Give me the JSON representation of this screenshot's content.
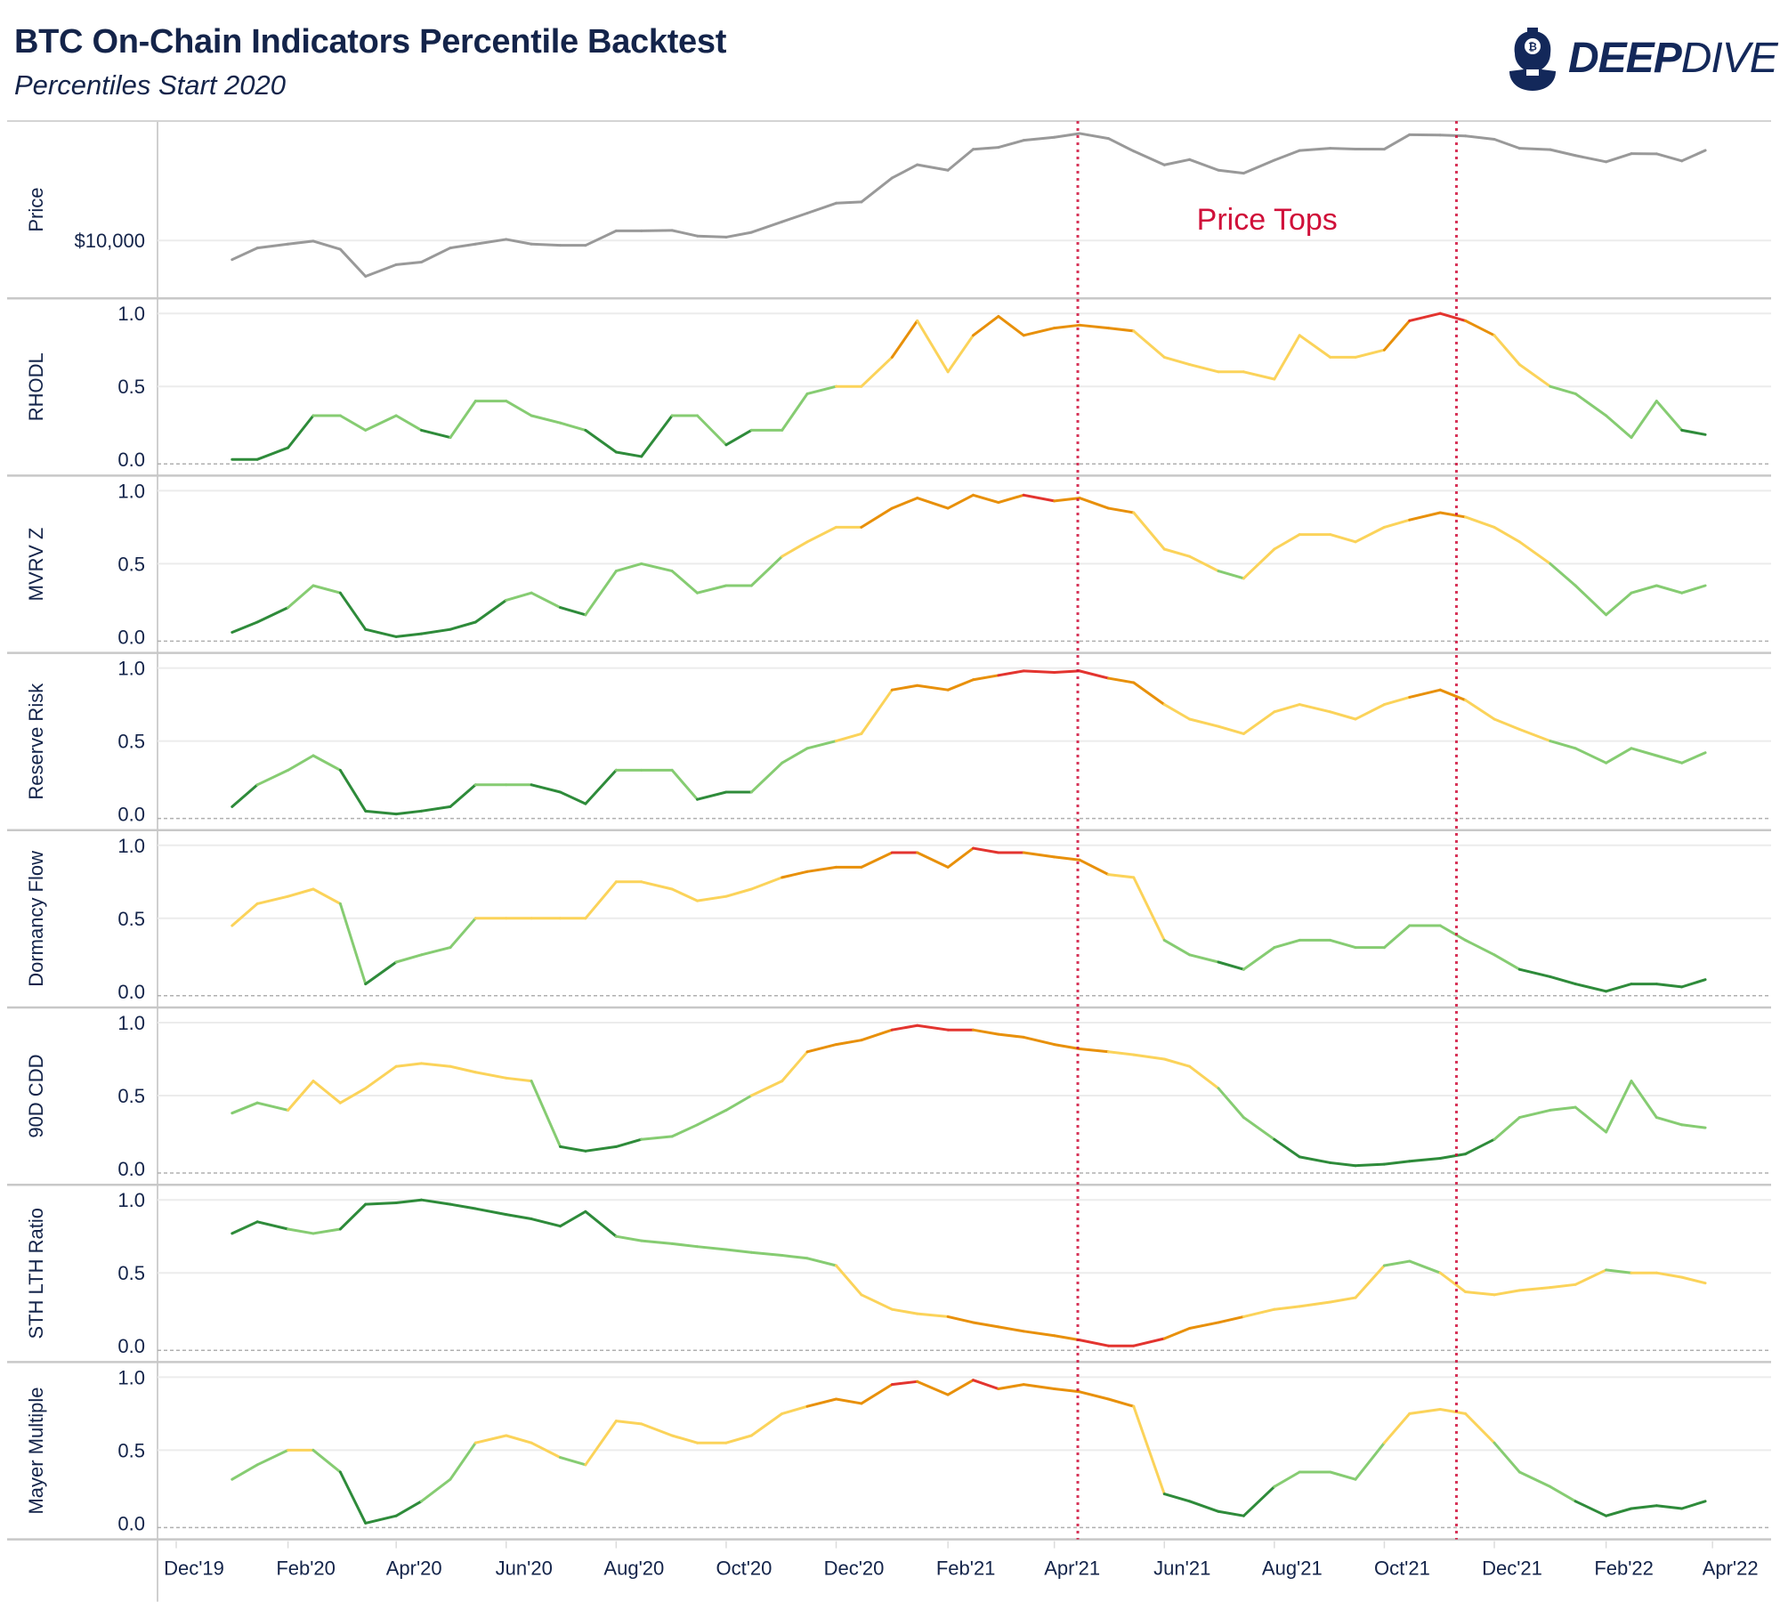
{
  "header": {
    "title": "BTC On-Chain Indicators Percentile Backtest",
    "subtitle": "Percentiles Start 2020"
  },
  "logo": {
    "text_bold": "DEEP",
    "text_light": "DIVE",
    "color": "#13285a"
  },
  "chart_data": {
    "type": "line",
    "title": "BTC On-Chain Indicators Percentile Backtest",
    "subtitle": "Percentiles Start 2020",
    "x_tick_labels": [
      "Dec'19",
      "Feb'20",
      "Apr'20",
      "Jun'20",
      "Aug'20",
      "Oct'20",
      "Dec'20",
      "Feb'21",
      "Apr'21",
      "Jun'21",
      "Aug'21",
      "Oct'21",
      "Dec'21",
      "Feb'22",
      "Apr'22"
    ],
    "x_tick_dates": [
      "2019-12-01",
      "2020-02-01",
      "2020-04-01",
      "2020-06-01",
      "2020-08-01",
      "2020-10-01",
      "2020-12-01",
      "2021-02-01",
      "2021-04-01",
      "2021-06-01",
      "2021-08-01",
      "2021-10-01",
      "2021-12-01",
      "2022-02-01",
      "2022-04-01"
    ],
    "xlim": [
      "2019-11-20",
      "2022-04-30"
    ],
    "grid": true,
    "annotations": [
      {
        "text": "Price Tops",
        "color": "#d0103a",
        "lines": [
          "2021-04-14",
          "2021-11-10"
        ]
      }
    ],
    "color_scale": [
      {
        "min": 0.95,
        "color": "#e3342f"
      },
      {
        "min": 0.8,
        "color": "#e8900a"
      },
      {
        "min": 0.5,
        "color": "#fbd35a"
      },
      {
        "min": 0.2,
        "color": "#86cc72"
      },
      {
        "min": -1,
        "color": "#2e8b3a"
      }
    ],
    "dates": [
      "2020-01-01",
      "2020-01-15",
      "2020-02-01",
      "2020-02-15",
      "2020-03-01",
      "2020-03-15",
      "2020-04-01",
      "2020-04-15",
      "2020-05-01",
      "2020-05-15",
      "2020-06-01",
      "2020-06-15",
      "2020-07-01",
      "2020-07-15",
      "2020-08-01",
      "2020-08-15",
      "2020-09-01",
      "2020-09-15",
      "2020-10-01",
      "2020-10-15",
      "2020-11-01",
      "2020-11-15",
      "2020-12-01",
      "2020-12-15",
      "2021-01-01",
      "2021-01-15",
      "2021-02-01",
      "2021-02-15",
      "2021-03-01",
      "2021-03-15",
      "2021-04-01",
      "2021-04-15",
      "2021-05-01",
      "2021-05-15",
      "2021-06-01",
      "2021-06-15",
      "2021-07-01",
      "2021-07-15",
      "2021-08-01",
      "2021-08-15",
      "2021-09-01",
      "2021-09-15",
      "2021-10-01",
      "2021-10-15",
      "2021-11-01",
      "2021-11-15",
      "2021-12-01",
      "2021-12-15",
      "2022-01-01",
      "2022-01-15",
      "2022-02-01",
      "2022-02-15",
      "2022-03-01",
      "2022-03-15",
      "2022-03-28"
    ],
    "panels": [
      {
        "name": "Price",
        "scale": "log",
        "ylim": [
          3700,
          78000
        ],
        "ticks": [
          10000
        ],
        "tick_labels": [
          "$10,000"
        ],
        "line_color": "#999999",
        "values": [
          7200,
          8800,
          9400,
          9900,
          8600,
          5400,
          6600,
          6900,
          8800,
          9400,
          10200,
          9400,
          9200,
          9200,
          11800,
          11800,
          11900,
          10800,
          10600,
          11500,
          13800,
          16000,
          19000,
          19400,
          29300,
          36800,
          33500,
          48000,
          49600,
          56000,
          59000,
          63000,
          57800,
          46500,
          36700,
          40200,
          33500,
          31800,
          39800,
          47000,
          48800,
          48200,
          48100,
          61700,
          61300,
          60400,
          57000,
          48800,
          47700,
          43100,
          38700,
          44500,
          44400,
          39300,
          47100
        ]
      },
      {
        "name": "RHODL",
        "scale": "linear",
        "ylim": [
          0,
          1
        ],
        "ticks": [
          0,
          0.5,
          1
        ],
        "tick_labels": [
          "0.0",
          "0.5",
          "1.0"
        ],
        "values": [
          0,
          0,
          0.08,
          0.3,
          0.3,
          0.2,
          0.3,
          0.2,
          0.15,
          0.4,
          0.4,
          0.3,
          0.25,
          0.2,
          0.05,
          0.02,
          0.3,
          0.3,
          0.1,
          0.2,
          0.2,
          0.45,
          0.5,
          0.5,
          0.7,
          0.95,
          0.6,
          0.85,
          0.98,
          0.85,
          0.9,
          0.92,
          0.9,
          0.88,
          0.7,
          0.65,
          0.6,
          0.6,
          0.55,
          0.85,
          0.7,
          0.7,
          0.75,
          0.95,
          1.0,
          0.95,
          0.85,
          0.65,
          0.5,
          0.45,
          0.3,
          0.15,
          0.4,
          0.2,
          0.17
        ]
      },
      {
        "name": "MVRV Z",
        "scale": "linear",
        "ylim": [
          0,
          1
        ],
        "ticks": [
          0,
          0.5,
          1
        ],
        "tick_labels": [
          "0.0",
          "0.5",
          "1.0"
        ],
        "values": [
          0.03,
          0.1,
          0.2,
          0.35,
          0.3,
          0.05,
          0,
          0.02,
          0.05,
          0.1,
          0.25,
          0.3,
          0.2,
          0.15,
          0.45,
          0.5,
          0.45,
          0.3,
          0.35,
          0.35,
          0.55,
          0.65,
          0.75,
          0.75,
          0.88,
          0.95,
          0.88,
          0.97,
          0.92,
          0.97,
          0.93,
          0.95,
          0.88,
          0.85,
          0.6,
          0.55,
          0.45,
          0.4,
          0.6,
          0.7,
          0.7,
          0.65,
          0.75,
          0.8,
          0.85,
          0.82,
          0.75,
          0.65,
          0.5,
          0.35,
          0.15,
          0.3,
          0.35,
          0.3,
          0.35
        ]
      },
      {
        "name": "Reserve Risk",
        "scale": "linear",
        "ylim": [
          0,
          1
        ],
        "ticks": [
          0,
          0.5,
          1
        ],
        "tick_labels": [
          "0.0",
          "0.5",
          "1.0"
        ],
        "values": [
          0.05,
          0.2,
          0.3,
          0.4,
          0.3,
          0.02,
          0,
          0.02,
          0.05,
          0.2,
          0.2,
          0.2,
          0.15,
          0.07,
          0.3,
          0.3,
          0.3,
          0.1,
          0.15,
          0.15,
          0.35,
          0.45,
          0.5,
          0.55,
          0.85,
          0.88,
          0.85,
          0.92,
          0.95,
          0.98,
          0.97,
          0.98,
          0.93,
          0.9,
          0.75,
          0.65,
          0.6,
          0.55,
          0.7,
          0.75,
          0.7,
          0.65,
          0.75,
          0.8,
          0.85,
          0.78,
          0.65,
          0.58,
          0.5,
          0.45,
          0.35,
          0.45,
          0.4,
          0.35,
          0.42
        ]
      },
      {
        "name": "Dormancy Flow",
        "scale": "linear",
        "ylim": [
          0,
          1
        ],
        "ticks": [
          0,
          0.5,
          1
        ],
        "tick_labels": [
          "0.0",
          "0.5",
          "1.0"
        ],
        "values": [
          0.45,
          0.6,
          0.65,
          0.7,
          0.6,
          0.05,
          0.2,
          0.25,
          0.3,
          0.5,
          0.5,
          0.5,
          0.5,
          0.5,
          0.75,
          0.75,
          0.7,
          0.62,
          0.65,
          0.7,
          0.78,
          0.82,
          0.85,
          0.85,
          0.95,
          0.95,
          0.85,
          0.98,
          0.95,
          0.95,
          0.92,
          0.9,
          0.8,
          0.78,
          0.35,
          0.25,
          0.2,
          0.15,
          0.3,
          0.35,
          0.35,
          0.3,
          0.3,
          0.45,
          0.45,
          0.35,
          0.25,
          0.15,
          0.1,
          0.05,
          0,
          0.05,
          0.05,
          0.03,
          0.08
        ]
      },
      {
        "name": "90D CDD",
        "scale": "linear",
        "ylim": [
          0,
          1
        ],
        "ticks": [
          0,
          0.5,
          1
        ],
        "tick_labels": [
          "0.0",
          "0.5",
          "1.0"
        ],
        "values": [
          0.38,
          0.45,
          0.4,
          0.6,
          0.45,
          0.55,
          0.7,
          0.72,
          0.7,
          0.66,
          0.62,
          0.6,
          0.15,
          0.12,
          0.15,
          0.2,
          0.22,
          0.3,
          0.4,
          0.5,
          0.6,
          0.8,
          0.85,
          0.88,
          0.95,
          0.98,
          0.95,
          0.95,
          0.92,
          0.9,
          0.85,
          0.82,
          0.8,
          0.78,
          0.75,
          0.7,
          0.55,
          0.35,
          0.2,
          0.08,
          0.04,
          0.02,
          0.03,
          0.05,
          0.07,
          0.1,
          0.2,
          0.35,
          0.4,
          0.42,
          0.25,
          0.6,
          0.35,
          0.3,
          0.28
        ]
      },
      {
        "name": "STH LTH Ratio",
        "scale": "linear",
        "ylim": [
          0,
          1
        ],
        "ticks": [
          0,
          0.5,
          1
        ],
        "tick_labels": [
          "0.0",
          "0.5",
          "1.0"
        ],
        "color_inverted": true,
        "values": [
          0.77,
          0.85,
          0.8,
          0.77,
          0.8,
          0.97,
          0.98,
          1.0,
          0.97,
          0.94,
          0.9,
          0.87,
          0.82,
          0.92,
          0.75,
          0.72,
          0.7,
          0.68,
          0.66,
          0.64,
          0.62,
          0.6,
          0.55,
          0.35,
          0.25,
          0.22,
          0.2,
          0.16,
          0.13,
          0.1,
          0.07,
          0.04,
          0,
          0,
          0.05,
          0.12,
          0.16,
          0.2,
          0.25,
          0.27,
          0.3,
          0.33,
          0.55,
          0.58,
          0.5,
          0.37,
          0.35,
          0.38,
          0.4,
          0.42,
          0.52,
          0.5,
          0.5,
          0.47,
          0.43
        ]
      },
      {
        "name": "Mayer Multiple",
        "scale": "linear",
        "ylim": [
          0,
          1
        ],
        "ticks": [
          0,
          0.5,
          1
        ],
        "tick_labels": [
          "0.0",
          "0.5",
          "1.0"
        ],
        "values": [
          0.3,
          0.4,
          0.5,
          0.5,
          0.35,
          0,
          0.05,
          0.15,
          0.3,
          0.55,
          0.6,
          0.55,
          0.45,
          0.4,
          0.7,
          0.68,
          0.6,
          0.55,
          0.55,
          0.6,
          0.75,
          0.8,
          0.85,
          0.82,
          0.95,
          0.97,
          0.88,
          0.98,
          0.92,
          0.95,
          0.92,
          0.9,
          0.85,
          0.8,
          0.2,
          0.15,
          0.08,
          0.05,
          0.25,
          0.35,
          0.35,
          0.3,
          0.55,
          0.75,
          0.78,
          0.75,
          0.55,
          0.35,
          0.25,
          0.15,
          0.05,
          0.1,
          0.12,
          0.1,
          0.15
        ]
      }
    ]
  }
}
